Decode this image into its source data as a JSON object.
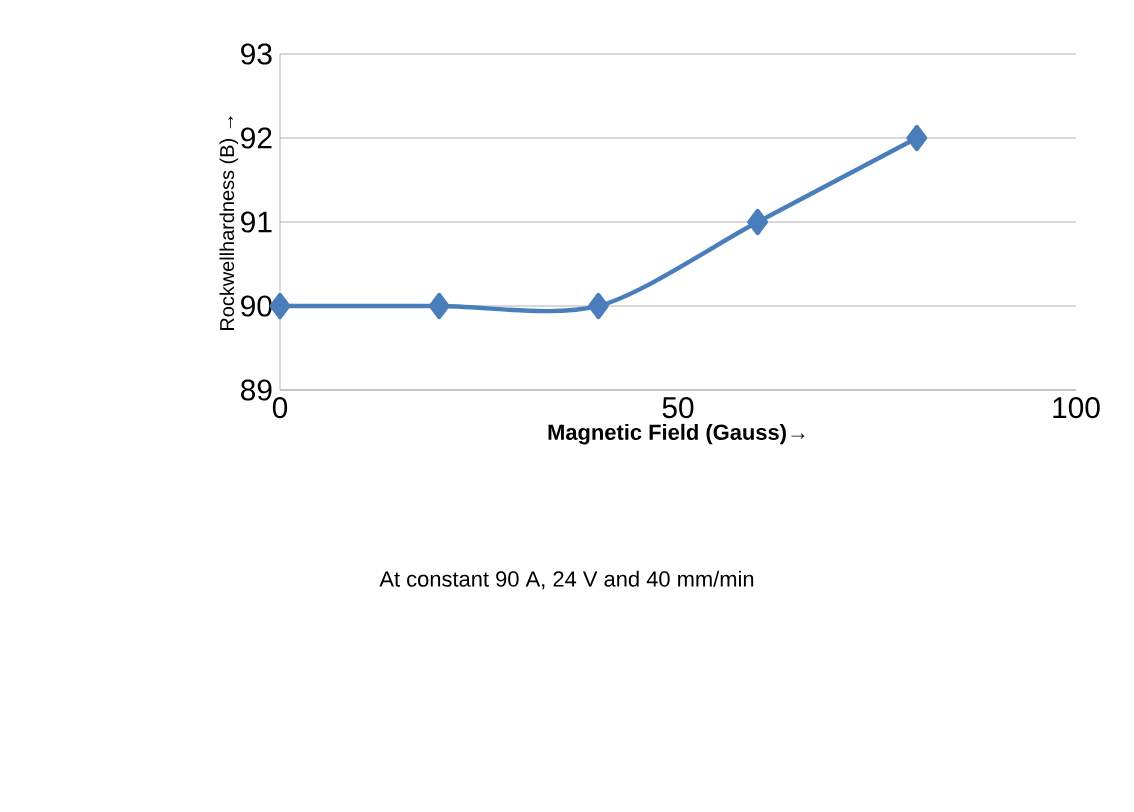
{
  "chart_data": {
    "type": "line",
    "xlabel": "**Magnetic Field (Gauss)→**",
    "ylabel": "Rockwellhardness (B) →",
    "x": [
      0,
      20,
      40,
      60,
      80
    ],
    "series": [
      {
        "color": "#4a7ebb",
        "values": [
          90,
          90,
          90,
          91,
          92
        ]
      }
    ],
    "xlim": [
      0,
      100
    ],
    "xticks": [
      0,
      50,
      100
    ],
    "ylim": [
      89,
      93
    ],
    "yticks": [
      89,
      90,
      91,
      92,
      93
    ],
    "grid": "y",
    "marker": "diamond",
    "line_style": "solid",
    "annotations": [
      "At constant 90 A, 24 V and 40 mm/min"
    ]
  }
}
